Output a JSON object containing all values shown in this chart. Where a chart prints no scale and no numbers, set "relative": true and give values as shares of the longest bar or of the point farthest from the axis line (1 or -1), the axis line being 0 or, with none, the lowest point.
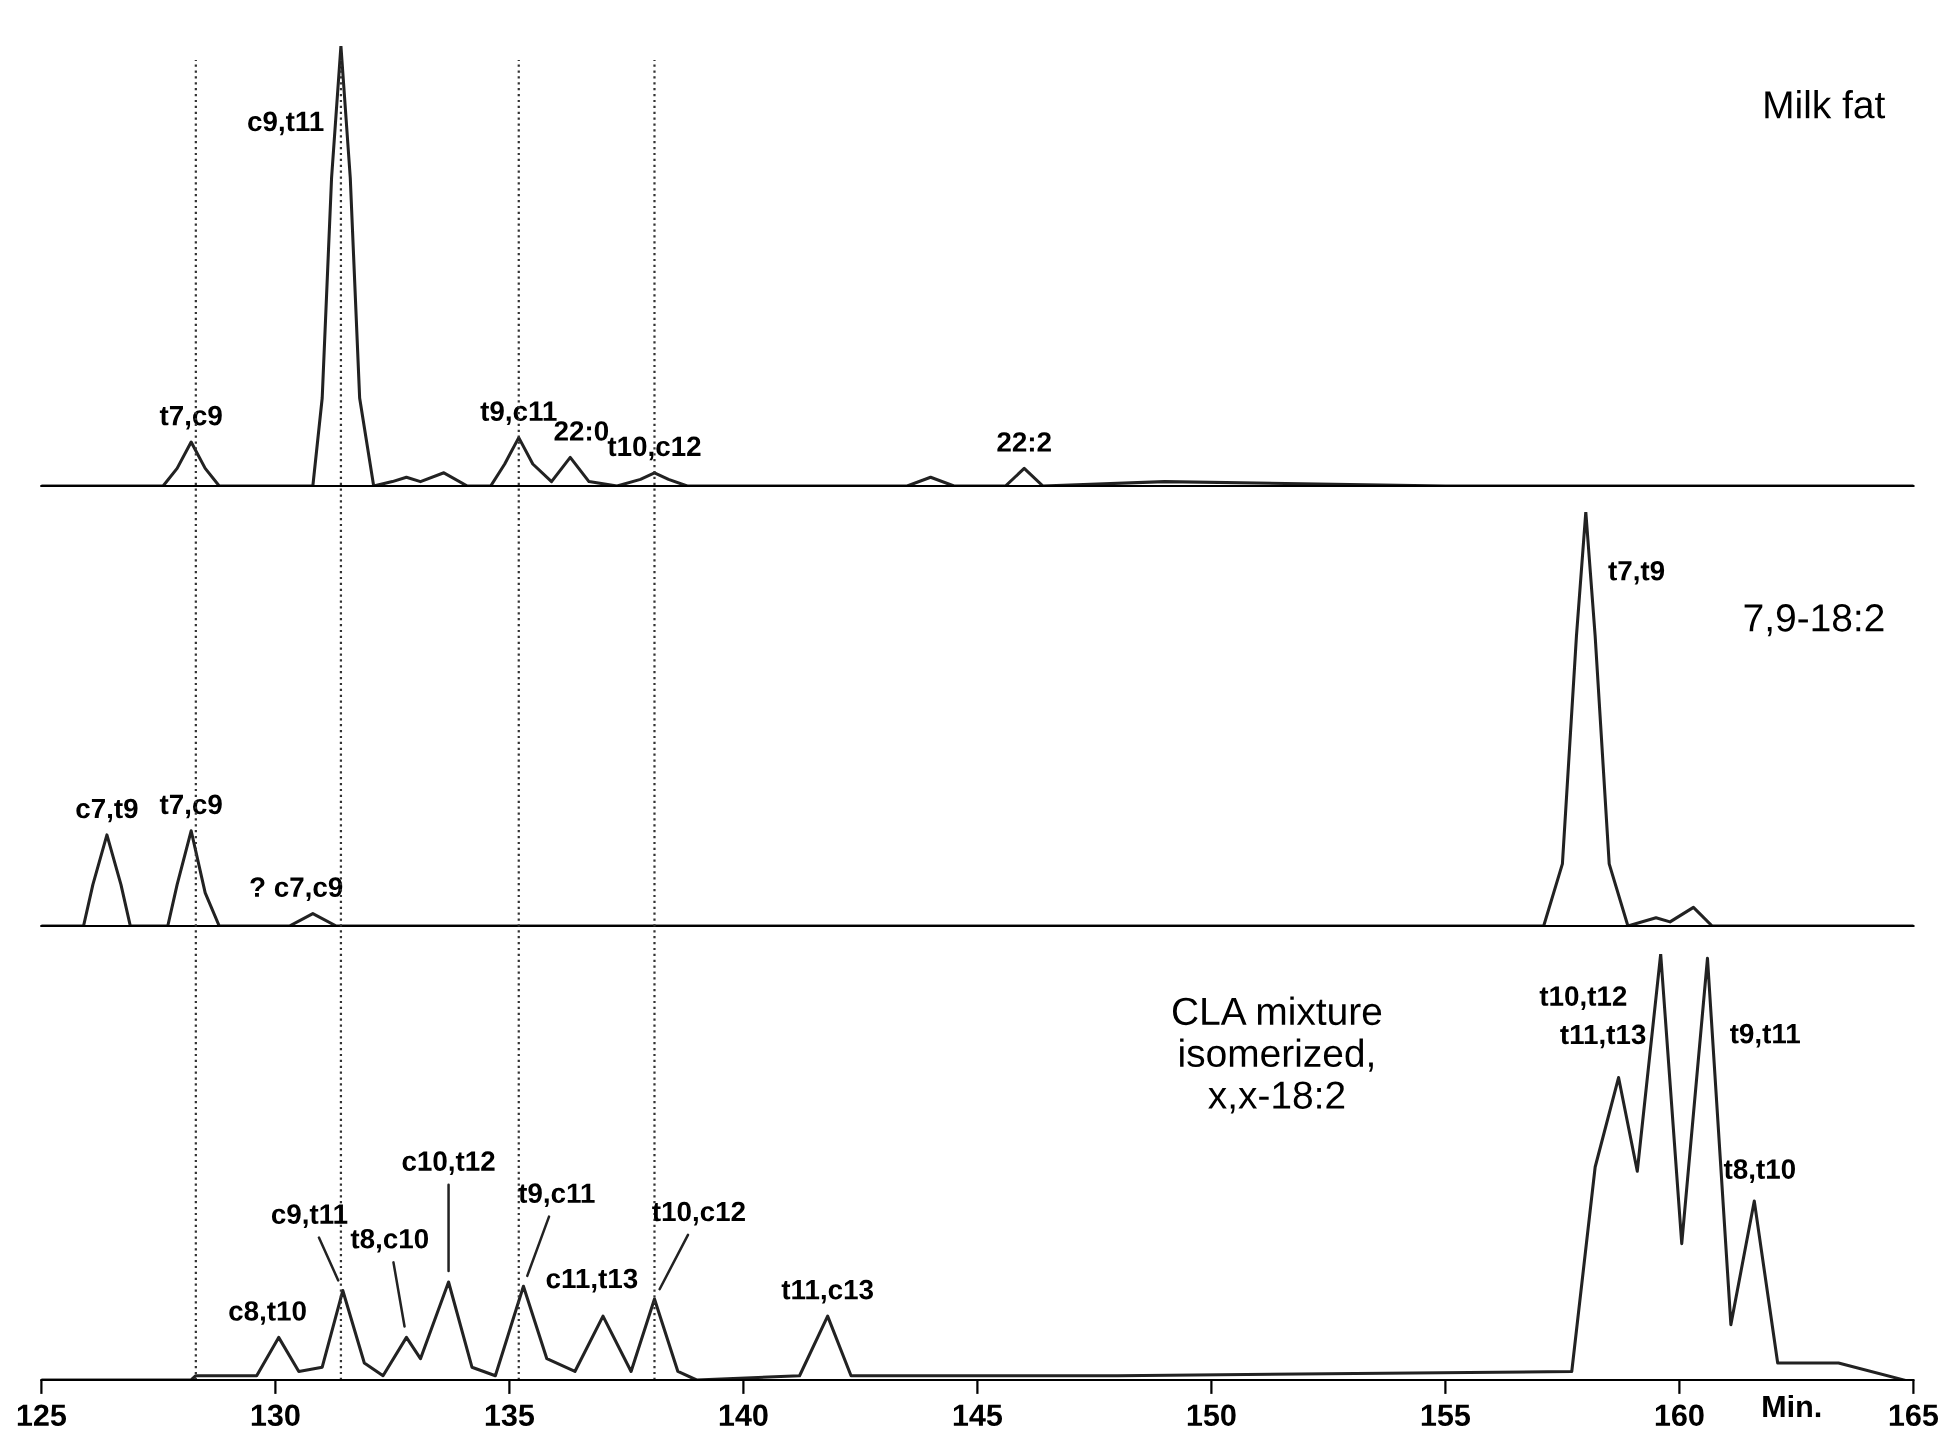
{
  "chart_data": [
    {
      "type": "line",
      "title": "Milk fat",
      "relative": true,
      "xlim": [
        125,
        165
      ],
      "tick_labels": false,
      "x": [
        125,
        127.6,
        127.9,
        128.2,
        128.5,
        128.8,
        130.8,
        131.0,
        131.2,
        131.4,
        131.6,
        131.8,
        132.1,
        132.5,
        132.8,
        133.1,
        133.6,
        134.1,
        134.6,
        134.9,
        135.2,
        135.5,
        135.9,
        136.3,
        136.7,
        137.3,
        137.8,
        138.1,
        138.4,
        138.8,
        143.5,
        144.0,
        144.5,
        145.6,
        146.0,
        146.4,
        149,
        155,
        165
      ],
      "series": [
        {
          "color": "#222222",
          "values": [
            0,
            0,
            0.04,
            0.1,
            0.04,
            0,
            0,
            0.2,
            0.7,
            1.0,
            0.7,
            0.2,
            0,
            0.01,
            0.02,
            0.01,
            0.03,
            0,
            0,
            0.05,
            0.11,
            0.05,
            0.01,
            0.065,
            0.01,
            0,
            0.015,
            0.03,
            0.015,
            0,
            0,
            0.02,
            0,
            0,
            0.04,
            0,
            0.01,
            0,
            0
          ]
        }
      ],
      "annotations": [
        {
          "text": "t7,c9",
          "x": 128.2,
          "y": 0.1
        },
        {
          "text": "c9,t11",
          "x": 131.4,
          "y": 1.0
        },
        {
          "text": "t9,c11",
          "x": 135.2,
          "y": 0.11
        },
        {
          "text": "22:0",
          "x": 136.3,
          "y": 0.065
        },
        {
          "text": "t10,c12",
          "x": 138.1,
          "y": 0.03
        },
        {
          "text": "22:2",
          "x": 146.0,
          "y": 0.04
        }
      ]
    },
    {
      "type": "line",
      "title": "7,9-18:2",
      "relative": true,
      "xlim": [
        125,
        165
      ],
      "tick_labels": false,
      "x": [
        125,
        125.9,
        126.1,
        126.4,
        126.7,
        126.9,
        127.7,
        127.9,
        128.2,
        128.5,
        128.8,
        130.3,
        130.8,
        131.3,
        157.1,
        157.5,
        157.8,
        158.0,
        158.2,
        158.5,
        158.9,
        159.5,
        159.8,
        160.3,
        160.7,
        165
      ],
      "series": [
        {
          "color": "#222222",
          "values": [
            0,
            0,
            0.1,
            0.22,
            0.1,
            0,
            0,
            0.1,
            0.23,
            0.08,
            0,
            0,
            0.03,
            0,
            0,
            0.15,
            0.7,
            1.0,
            0.7,
            0.15,
            0,
            0.02,
            0.01,
            0.045,
            0,
            0
          ]
        }
      ],
      "annotations": [
        {
          "text": "c7,t9",
          "x": 126.4,
          "y": 0.22
        },
        {
          "text": "t7,c9",
          "x": 128.2,
          "y": 0.23
        },
        {
          "text": "? c7,c9",
          "x": 130.8,
          "y": 0.03
        },
        {
          "text": "t7,t9",
          "x": 158.0,
          "y": 1.0
        }
      ]
    },
    {
      "type": "line",
      "title": "CLA mixture\nisomerized,\nx,x-18:2",
      "relative": true,
      "xlim": [
        125,
        165
      ],
      "xticks": [
        125,
        130,
        135,
        140,
        145,
        150,
        155,
        160,
        165
      ],
      "xlabel": "Min.",
      "tick_labels": "x",
      "x": [
        125,
        128.2,
        128.3,
        129.6,
        130.07,
        130.5,
        131.0,
        131.44,
        131.9,
        132.3,
        132.8,
        133.1,
        133.7,
        134.2,
        134.7,
        135.3,
        135.8,
        136.4,
        137.0,
        137.6,
        138.1,
        138.6,
        139.0,
        141.2,
        141.8,
        142.3,
        148,
        157.7,
        158.2,
        158.7,
        159.1,
        159.6,
        160.05,
        160.6,
        161.1,
        161.6,
        162.1,
        163.4,
        164.8
      ],
      "series": [
        {
          "color": "#222222",
          "values": [
            0,
            0,
            0.01,
            0.01,
            0.1,
            0.02,
            0.03,
            0.21,
            0.04,
            0.01,
            0.1,
            0.05,
            0.23,
            0.03,
            0.01,
            0.22,
            0.05,
            0.02,
            0.15,
            0.02,
            0.19,
            0.02,
            0,
            0.01,
            0.15,
            0.01,
            0.01,
            0.02,
            0.5,
            0.71,
            0.49,
            1.0,
            0.32,
            0.99,
            0.13,
            0.42,
            0.04,
            0.04,
            0
          ]
        }
      ],
      "ref_lines": [
        {
          "axis": "x",
          "value": 128.3,
          "label": null,
          "line_style": "dotted"
        },
        {
          "axis": "x",
          "value": 131.4,
          "label": null,
          "line_style": "dotted"
        },
        {
          "axis": "x",
          "value": 135.2,
          "label": null,
          "line_style": "dotted"
        },
        {
          "axis": "x",
          "value": 138.1,
          "label": null,
          "line_style": "dotted"
        }
      ],
      "annotations": [
        {
          "text": "c8,t10",
          "x": 130.07,
          "y": 0.1
        },
        {
          "text": "c9,t11",
          "x": 131.44,
          "y": 0.21
        },
        {
          "text": "t8,c10",
          "x": 132.8,
          "y": 0.1
        },
        {
          "text": "c10,t12",
          "x": 133.7,
          "y": 0.23
        },
        {
          "text": "t9,c11",
          "x": 135.3,
          "y": 0.22
        },
        {
          "text": "c11,t13",
          "x": 137.0,
          "y": 0.15
        },
        {
          "text": "t10,c12",
          "x": 138.1,
          "y": 0.19
        },
        {
          "text": "t11,c13",
          "x": 141.8,
          "y": 0.15
        },
        {
          "text": "t10,t12",
          "x": 159.6,
          "y": 1.0
        },
        {
          "text": "t11,t13",
          "x": 158.7,
          "y": 0.71
        },
        {
          "text": "t9,t11",
          "x": 160.6,
          "y": 0.99
        },
        {
          "text": "t8,t10",
          "x": 161.6,
          "y": 0.42
        }
      ]
    }
  ]
}
